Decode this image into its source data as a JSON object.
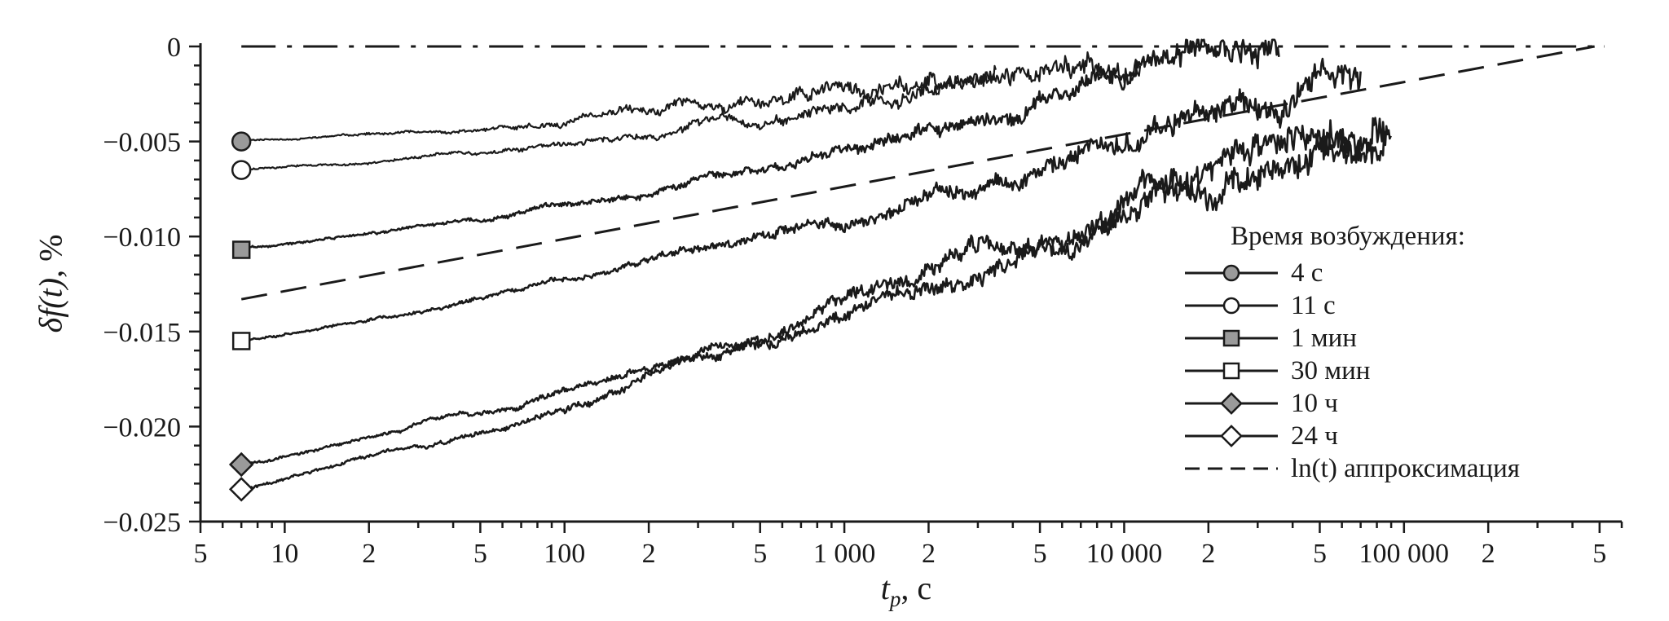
{
  "chart_data": {
    "type": "line",
    "x_scale": "log",
    "x_domain": [
      5,
      600000
    ],
    "y_domain": [
      -0.025,
      0
    ],
    "grid": false,
    "xlabel": {
      "main": "t",
      "sub": "p",
      "unit": ", с"
    },
    "ylabel": {
      "main": "δf(t)",
      "unit": ", %"
    },
    "x_ticks": [
      {
        "v": 5,
        "label": "5"
      },
      {
        "v": 10,
        "label": "10"
      },
      {
        "v": 20,
        "label": "2"
      },
      {
        "v": 50,
        "label": "5"
      },
      {
        "v": 100,
        "label": "100"
      },
      {
        "v": 200,
        "label": "2"
      },
      {
        "v": 500,
        "label": "5"
      },
      {
        "v": 1000,
        "label": "1 000"
      },
      {
        "v": 2000,
        "label": "2"
      },
      {
        "v": 5000,
        "label": "5"
      },
      {
        "v": 10000,
        "label": "10 000"
      },
      {
        "v": 20000,
        "label": "2"
      },
      {
        "v": 50000,
        "label": "5"
      },
      {
        "v": 100000,
        "label": "100 000"
      },
      {
        "v": 200000,
        "label": "2"
      },
      {
        "v": 500000,
        "label": "5"
      }
    ],
    "y_ticks": [
      {
        "v": 0,
        "label": "0"
      },
      {
        "v": -0.005,
        "label": "−0.005"
      },
      {
        "v": -0.01,
        "label": "−0.010"
      },
      {
        "v": -0.015,
        "label": "−0.015"
      },
      {
        "v": -0.02,
        "label": "−0.020"
      },
      {
        "v": -0.025,
        "label": "−0.025"
      }
    ],
    "y_minor_step": 0.001,
    "zero_line": {
      "y": 0,
      "x_start": 7,
      "x_end": 520000,
      "style": "dash-dot"
    },
    "approx_line": {
      "label": "ln(t) аппроксимация",
      "style": "dashed",
      "points": [
        [
          7,
          -0.0133
        ],
        [
          480000,
          0.0
        ]
      ]
    },
    "legend": {
      "title": "Время возбуждения:",
      "items": [
        {
          "label": "4 с",
          "line": "solid",
          "marker": "circle",
          "fill": "gray"
        },
        {
          "label": "11 с",
          "line": "solid",
          "marker": "circle",
          "fill": "open"
        },
        {
          "label": "1 мин",
          "line": "solid",
          "marker": "square",
          "fill": "gray"
        },
        {
          "label": "30 мин",
          "line": "solid",
          "marker": "square",
          "fill": "open"
        },
        {
          "label": "10 ч",
          "line": "solid",
          "marker": "diamond",
          "fill": "gray"
        },
        {
          "label": "24 ч",
          "line": "solid",
          "marker": "diamond",
          "fill": "open"
        },
        {
          "label": "ln(t) аппроксимация",
          "line": "dashed",
          "marker": "none",
          "fill": "none"
        }
      ]
    },
    "series": [
      {
        "name": "4 с",
        "marker": "circle",
        "fill": "gray",
        "width": 2.2,
        "marker_size": 11,
        "noise": [
          3e-05,
          0.0004
        ],
        "points": [
          [
            7,
            -0.005
          ],
          [
            20,
            -0.00465
          ],
          [
            50,
            -0.0043
          ],
          [
            100,
            -0.0039
          ],
          [
            200,
            -0.0034
          ],
          [
            400,
            -0.0029
          ],
          [
            800,
            -0.0023
          ],
          [
            1500,
            -0.0017
          ],
          [
            2500,
            -0.0009
          ],
          [
            3500,
            -0.0003
          ]
        ]
      },
      {
        "name": "11 с",
        "marker": "circle",
        "fill": "open",
        "width": 2.2,
        "marker_size": 11,
        "noise": [
          3e-05,
          0.00045
        ],
        "points": [
          [
            7,
            -0.0065
          ],
          [
            20,
            -0.0061
          ],
          [
            50,
            -0.0056
          ],
          [
            100,
            -0.0051
          ],
          [
            250,
            -0.0044
          ],
          [
            600,
            -0.0036
          ],
          [
            1500,
            -0.0026
          ],
          [
            4000,
            -0.0016
          ],
          [
            8000,
            -0.0008
          ],
          [
            11500,
            -0.0003
          ]
        ]
      },
      {
        "name": "1 мин",
        "marker": "square",
        "fill": "gray",
        "width": 2.6,
        "marker_size": 10,
        "noise": [
          4e-05,
          0.0005
        ],
        "points": [
          [
            7,
            -0.0107
          ],
          [
            20,
            -0.0099
          ],
          [
            60,
            -0.0089
          ],
          [
            150,
            -0.0079
          ],
          [
            400,
            -0.0067
          ],
          [
            1000,
            -0.0054
          ],
          [
            2500,
            -0.0042
          ],
          [
            6000,
            -0.0029
          ],
          [
            15000,
            -0.0017
          ],
          [
            30000,
            -0.0008
          ],
          [
            36000,
            -0.0004
          ]
        ]
      },
      {
        "name": "30 мин",
        "marker": "square",
        "fill": "open",
        "width": 2.6,
        "marker_size": 10,
        "noise": [
          4e-05,
          0.0006
        ],
        "points": [
          [
            7,
            -0.0155
          ],
          [
            20,
            -0.0144
          ],
          [
            60,
            -0.0131
          ],
          [
            150,
            -0.0118
          ],
          [
            400,
            -0.0103
          ],
          [
            1000,
            -0.0088
          ],
          [
            2500,
            -0.0072
          ],
          [
            6000,
            -0.0057
          ],
          [
            15000,
            -0.0041
          ],
          [
            35000,
            -0.0026
          ],
          [
            60000,
            -0.0013
          ],
          [
            70000,
            -0.0009
          ]
        ]
      },
      {
        "name": "10 ч",
        "marker": "diamond",
        "fill": "gray",
        "width": 2.6,
        "marker_size": 10,
        "noise": [
          5e-05,
          0.0007
        ],
        "points": [
          [
            7,
            -0.022
          ],
          [
            20,
            -0.0206
          ],
          [
            60,
            -0.019
          ],
          [
            150,
            -0.0174
          ],
          [
            400,
            -0.0156
          ],
          [
            1000,
            -0.0137
          ],
          [
            2500,
            -0.0117
          ],
          [
            6000,
            -0.0097
          ],
          [
            15000,
            -0.0076
          ],
          [
            35000,
            -0.0057
          ],
          [
            60000,
            -0.0046
          ],
          [
            85000,
            -0.004
          ]
        ]
      },
      {
        "name": "24 ч",
        "marker": "diamond",
        "fill": "open",
        "width": 2.6,
        "marker_size": 10,
        "noise": [
          5e-05,
          0.0007
        ],
        "points": [
          [
            7,
            -0.0233
          ],
          [
            20,
            -0.0217
          ],
          [
            60,
            -0.02
          ],
          [
            150,
            -0.0182
          ],
          [
            400,
            -0.0163
          ],
          [
            1000,
            -0.0142
          ],
          [
            2500,
            -0.0121
          ],
          [
            6000,
            -0.01
          ],
          [
            15000,
            -0.0078
          ],
          [
            35000,
            -0.0059
          ],
          [
            60000,
            -0.0047
          ],
          [
            90000,
            -0.0041
          ]
        ]
      }
    ],
    "colors": {
      "line": "#1a1a1a",
      "marker_gray": "#9a9a9a",
      "marker_open": "#ffffff"
    }
  }
}
